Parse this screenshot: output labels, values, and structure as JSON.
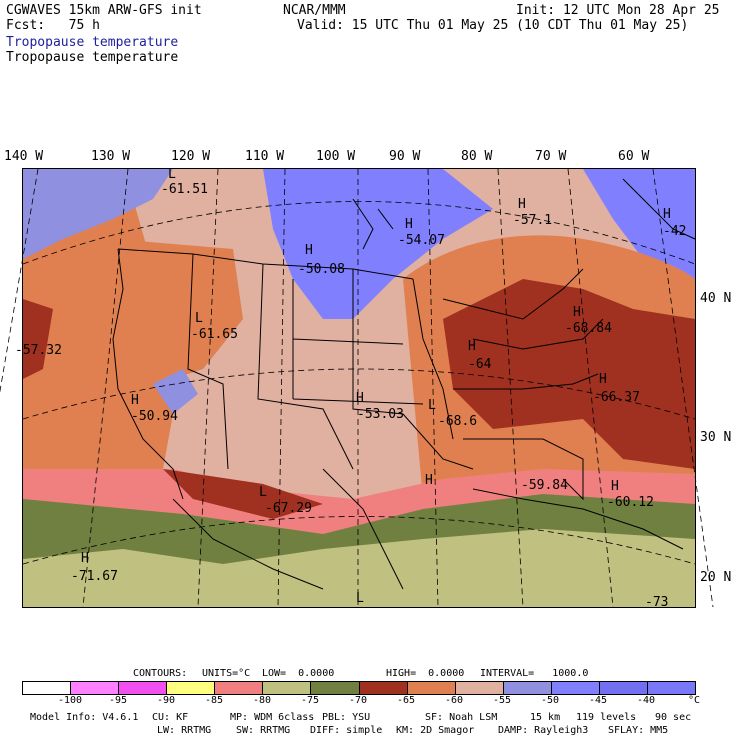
{
  "header": {
    "model_line": "CGWAVES 15km ARW-GFS init",
    "fcst_line": "Fcst:   75 h",
    "org": "NCAR/MMM",
    "init": "Init: 12 UTC Mon 28 Apr 25",
    "valid": "Valid: 15 UTC Thu 01 May 25 (10 CDT Thu 01 May 25)",
    "field_title_1": "Tropopause temperature",
    "field_title_2": "Tropopause temperature"
  },
  "axes": {
    "lon_labels": [
      "140 W",
      "130 W",
      "120 W",
      "110 W",
      "100 W",
      "90 W",
      "80 W",
      "70 W",
      "60 W"
    ],
    "lat_labels": [
      "40 N",
      "30 N",
      "20 N"
    ]
  },
  "pressure_labels": [
    {
      "kind": "L",
      "value": "-61.51"
    },
    {
      "kind": "H",
      "value": "-54.07"
    },
    {
      "kind": "H",
      "value": "-57.1"
    },
    {
      "kind": "H",
      "value": "-42"
    },
    {
      "kind": "H",
      "value": "-50.08"
    },
    {
      "kind": "L",
      "value": "-61.65"
    },
    {
      "kind": "H",
      "value": "-64"
    },
    {
      "kind": "H",
      "value": "-68.84"
    },
    {
      "kind": "H",
      "value": "-66.37"
    },
    {
      "kind": "H",
      "value": "-50.94"
    },
    {
      "kind": "H",
      "value": "-53.03"
    },
    {
      "kind": "L",
      "value": "-68.6"
    },
    {
      "kind": "L",
      "value": "-67.29"
    },
    {
      "kind": "H",
      "value": "-59.84"
    },
    {
      "kind": "H",
      "value": "-60.12"
    },
    {
      "kind": "H",
      "value": "-71.67"
    },
    {
      "kind": "L",
      "value": "-57.32"
    },
    {
      "kind": "L",
      "value": "-73"
    }
  ],
  "contours_line": {
    "label": "CONTOURS:",
    "units": "UNITS=°C",
    "low": "LOW=  0.0000",
    "high": "HIGH=  0.0000",
    "interval": "INTERVAL=   1000.0"
  },
  "colorbar": {
    "colors": [
      "#ffffff",
      "#ff80ff",
      "#f050f0",
      "#ffff80",
      "#f08080",
      "#c0c080",
      "#708040",
      "#a03020",
      "#e08050",
      "#e0b0a0",
      "#9090e0",
      "#8080ff",
      "#7070f0",
      "#7878f8"
    ],
    "tick_labels": [
      "-100",
      "-95",
      "-90",
      "-85",
      "-80",
      "-75",
      "-70",
      "-65",
      "-60",
      "-55",
      "-50",
      "-45",
      "-40",
      "°C"
    ]
  },
  "footer": {
    "model_info": "Model Info: V4.6.1",
    "cu": "CU: KF",
    "mp": "MP: WDM 6class",
    "pbl": "PBL: YSU",
    "sf": "SF: Noah LSM",
    "res": "15 km",
    "levels": "119 levels",
    "dt": "90 sec",
    "lw": "LW: RRTMG",
    "sw": "SW: RRTMG",
    "diff": "DIFF: simple",
    "km": "KM: 2D Smagor",
    "damp": "DAMP: Rayleigh3",
    "sflay": "SFLAY: MM5"
  }
}
